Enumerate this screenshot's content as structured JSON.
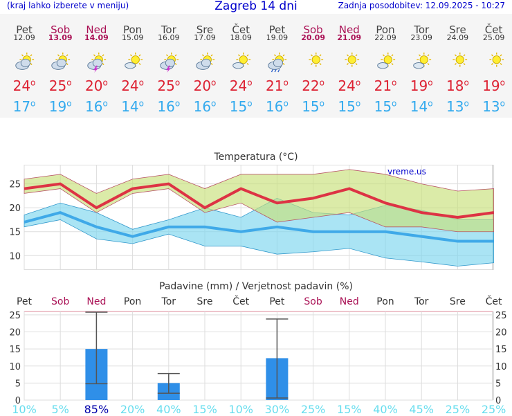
{
  "header": {
    "left_note": "(kraj lahko izberete v meniju)",
    "title": "Zagreb 14 dni",
    "updated": "Zadnja posodobitev: 12.09.2025 - 10:27"
  },
  "colors": {
    "max_line": "#dd2233",
    "min_line": "#33aaee",
    "weekend": "#aa1155",
    "bar": "#2f8fe8",
    "prob_low": "#66ddee",
    "prob_high": "#0000aa"
  },
  "days": [
    {
      "name": "Pet",
      "date": "12.09",
      "weekend": false,
      "icon": "partly-cloudy-icon",
      "max": "24",
      "min": "17"
    },
    {
      "name": "Sob",
      "date": "13.09",
      "weekend": true,
      "icon": "partly-cloudy-icon",
      "max": "25",
      "min": "19"
    },
    {
      "name": "Ned",
      "date": "14.09",
      "weekend": true,
      "icon": "thunderstorm-icon",
      "max": "20",
      "min": "16"
    },
    {
      "name": "Pon",
      "date": "15.09",
      "weekend": false,
      "icon": "sunny-cloud-icon",
      "max": "24",
      "min": "14"
    },
    {
      "name": "Tor",
      "date": "16.09",
      "weekend": false,
      "icon": "thunderstorm-icon",
      "max": "25",
      "min": "16"
    },
    {
      "name": "Sre",
      "date": "17.09",
      "weekend": false,
      "icon": "partly-cloudy-icon",
      "max": "20",
      "min": "16"
    },
    {
      "name": "Čet",
      "date": "18.09",
      "weekend": false,
      "icon": "sunny-cloud-icon",
      "max": "24",
      "min": "15"
    },
    {
      "name": "Pet",
      "date": "19.09",
      "weekend": false,
      "icon": "rain-cloud-icon",
      "max": "21",
      "min": "16"
    },
    {
      "name": "Sob",
      "date": "20.09",
      "weekend": true,
      "icon": "sunny-icon",
      "max": "22",
      "min": "15"
    },
    {
      "name": "Ned",
      "date": "21.09",
      "weekend": true,
      "icon": "sunny-icon",
      "max": "24",
      "min": "15"
    },
    {
      "name": "Pon",
      "date": "22.09",
      "weekend": false,
      "icon": "sunny-cloud-icon",
      "max": "21",
      "min": "15"
    },
    {
      "name": "Tor",
      "date": "23.09",
      "weekend": false,
      "icon": "sunny-cloud-icon",
      "max": "19",
      "min": "14"
    },
    {
      "name": "Sre",
      "date": "24.09",
      "weekend": false,
      "icon": "sunny-icon",
      "max": "18",
      "min": "13"
    },
    {
      "name": "Čet",
      "date": "25.09",
      "weekend": false,
      "icon": "sunny-icon",
      "max": "19",
      "min": "13"
    }
  ],
  "chart_data": [
    {
      "type": "line",
      "title": "Temperatura (°C)",
      "watermark": "vreme.us",
      "ylim": [
        7,
        29
      ],
      "yticks": [
        10,
        15,
        20,
        25
      ],
      "grid": true,
      "categories": [
        "12.09",
        "13.09",
        "14.09",
        "15.09",
        "16.09",
        "17.09",
        "18.09",
        "19.09",
        "20.09",
        "21.09",
        "22.09",
        "23.09",
        "24.09",
        "25.09"
      ],
      "series": [
        {
          "values": [
            24,
            25,
            20,
            24,
            25,
            20,
            24,
            21,
            22,
            24,
            21,
            19,
            18,
            19
          ]
        },
        {
          "values": [
            17,
            19,
            16,
            14,
            16,
            16,
            15,
            16,
            15,
            15,
            15,
            14,
            13,
            13
          ]
        }
      ],
      "bands": [
        {
          "upper": [
            26,
            27,
            23,
            26,
            27,
            24,
            27,
            27,
            27,
            28,
            27,
            25,
            23.5,
            24
          ],
          "lower": [
            23,
            24,
            19,
            23,
            24,
            19,
            21,
            17,
            18,
            19,
            16,
            16,
            15,
            15
          ]
        },
        {
          "upper": [
            18.5,
            21,
            19,
            15.5,
            17.5,
            20,
            18,
            22,
            19,
            18.5,
            20.5,
            19.5,
            17.5,
            17.5
          ],
          "lower": [
            16,
            17.5,
            13.5,
            12.5,
            14.5,
            12,
            12,
            10.3,
            10.8,
            11.5,
            9.5,
            8.7,
            7.8,
            8.5
          ]
        }
      ]
    },
    {
      "type": "bar",
      "title": "Padavine (mm) / Verjetnost padavin (%)",
      "ylim": [
        0,
        26
      ],
      "yticks": [
        0,
        5,
        10,
        15,
        20,
        25
      ],
      "categories": [
        "Pet",
        "Sob",
        "Ned",
        "Pon",
        "Tor",
        "Sre",
        "Čet",
        "Pet",
        "Sob",
        "Ned",
        "Pon",
        "Tor",
        "Sre",
        "Čet"
      ],
      "values": [
        0,
        0,
        15,
        0,
        5,
        0,
        0,
        12.3,
        0,
        0,
        0,
        0,
        0,
        0
      ],
      "error_bars": [
        null,
        null,
        [
          4.8,
          25.8
        ],
        null,
        [
          2,
          7.8
        ],
        null,
        null,
        [
          0.6,
          23.8
        ],
        null,
        null,
        null,
        null,
        null,
        null
      ],
      "probability": [
        "10%",
        "5%",
        "85%",
        "20%",
        "40%",
        "15%",
        "10%",
        "30%",
        "25%",
        "15%",
        "40%",
        "45%",
        "25%",
        "25%"
      ],
      "probability_values": [
        10,
        5,
        85,
        20,
        40,
        15,
        10,
        30,
        25,
        15,
        40,
        45,
        25,
        25
      ]
    }
  ]
}
